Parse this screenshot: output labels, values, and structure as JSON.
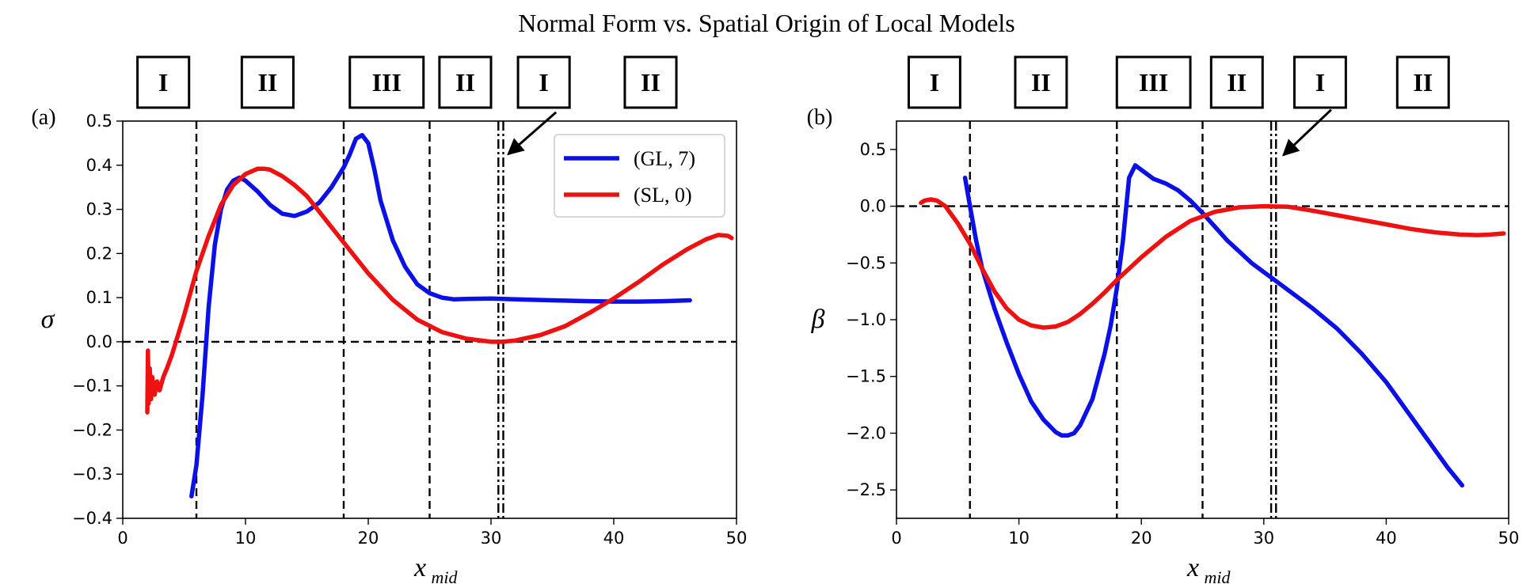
{
  "title": "Normal Form vs. Spatial Origin of Local Models",
  "chart_data": [
    {
      "panel": "(a)",
      "type": "line",
      "xlabel": "x",
      "xlabel_sub": "mid",
      "ylabel": "σ",
      "xlim": [
        0,
        50
      ],
      "ylim": [
        -0.4,
        0.5
      ],
      "xticks": [
        0,
        10,
        20,
        30,
        40,
        50
      ],
      "yticks": [
        -0.4,
        -0.3,
        -0.2,
        -0.1,
        0.0,
        0.1,
        0.2,
        0.3,
        0.4,
        0.5
      ],
      "ytick_labels": [
        "−0.4",
        "−0.3",
        "−0.2",
        "−0.1",
        "0.0",
        "0.1",
        "0.2",
        "0.3",
        "0.4",
        "0.5"
      ],
      "hline": 0,
      "vlines": [
        {
          "x": 6,
          "style": "dashed"
        },
        {
          "x": 18,
          "style": "dashed"
        },
        {
          "x": 25,
          "style": "dashed"
        },
        {
          "x": 30.6,
          "style": "dashdot"
        },
        {
          "x": 31.0,
          "style": "dashdot"
        }
      ],
      "regions": [
        {
          "label": "I",
          "x": 3.3,
          "w": 4.2
        },
        {
          "label": "II",
          "x": 11.8,
          "w": 4.2
        },
        {
          "label": "III",
          "x": 21.5,
          "w": 6.0
        },
        {
          "label": "II",
          "x": 27.9,
          "w": 4.2
        },
        {
          "label": "I",
          "x": 34.3,
          "w": 4.2
        },
        {
          "label": "II",
          "x": 43.0,
          "w": 4.2
        }
      ],
      "arrow": {
        "from": [
          35.3,
          0.52
        ],
        "to": [
          31.4,
          0.425
        ]
      },
      "legend": {
        "position": "top-right",
        "entries": [
          "(GL, 7)",
          "(SL, 0)"
        ]
      },
      "series": [
        {
          "name": "(GL, 7)",
          "color": "#0a10e6",
          "points": [
            [
              5.6,
              -0.35
            ],
            [
              6,
              -0.28
            ],
            [
              6.5,
              -0.12
            ],
            [
              7,
              0.08
            ],
            [
              7.5,
              0.22
            ],
            [
              8,
              0.3
            ],
            [
              8.5,
              0.345
            ],
            [
              9,
              0.365
            ],
            [
              9.5,
              0.372
            ],
            [
              10,
              0.365
            ],
            [
              11,
              0.34
            ],
            [
              12,
              0.31
            ],
            [
              13,
              0.29
            ],
            [
              14,
              0.285
            ],
            [
              15,
              0.295
            ],
            [
              16,
              0.315
            ],
            [
              17,
              0.35
            ],
            [
              18,
              0.395
            ],
            [
              18.5,
              0.425
            ],
            [
              19,
              0.46
            ],
            [
              19.5,
              0.468
            ],
            [
              20,
              0.45
            ],
            [
              20.5,
              0.39
            ],
            [
              21,
              0.32
            ],
            [
              22,
              0.23
            ],
            [
              23,
              0.17
            ],
            [
              24,
              0.13
            ],
            [
              25,
              0.11
            ],
            [
              26,
              0.1
            ],
            [
              27,
              0.096
            ],
            [
              28,
              0.097
            ],
            [
              30,
              0.098
            ],
            [
              32,
              0.096
            ],
            [
              35,
              0.094
            ],
            [
              38,
              0.092
            ],
            [
              40,
              0.091
            ],
            [
              42,
              0.091
            ],
            [
              44,
              0.092
            ],
            [
              46.2,
              0.094
            ]
          ]
        },
        {
          "name": "(SL, 0)",
          "color": "#ee1111",
          "points": [
            [
              2,
              -0.16
            ],
            [
              2.05,
              -0.02
            ],
            [
              2.1,
              -0.14
            ],
            [
              2.2,
              -0.06
            ],
            [
              2.3,
              -0.13
            ],
            [
              2.4,
              -0.08
            ],
            [
              2.6,
              -0.12
            ],
            [
              2.8,
              -0.09
            ],
            [
              3,
              -0.11
            ],
            [
              3.3,
              -0.08
            ],
            [
              3.6,
              -0.06
            ],
            [
              4,
              -0.03
            ],
            [
              5,
              0.06
            ],
            [
              6,
              0.16
            ],
            [
              7,
              0.24
            ],
            [
              8,
              0.31
            ],
            [
              9,
              0.355
            ],
            [
              10,
              0.38
            ],
            [
              11,
              0.392
            ],
            [
              11.5,
              0.392
            ],
            [
              12,
              0.39
            ],
            [
              13,
              0.375
            ],
            [
              14,
              0.355
            ],
            [
              15,
              0.33
            ],
            [
              16,
              0.295
            ],
            [
              17,
              0.26
            ],
            [
              18,
              0.225
            ],
            [
              20,
              0.155
            ],
            [
              22,
              0.095
            ],
            [
              24,
              0.05
            ],
            [
              26,
              0.022
            ],
            [
              28,
              0.007
            ],
            [
              30,
              0.0
            ],
            [
              31,
              0.0
            ],
            [
              32,
              0.003
            ],
            [
              34,
              0.015
            ],
            [
              36,
              0.035
            ],
            [
              38,
              0.065
            ],
            [
              40,
              0.098
            ],
            [
              42,
              0.135
            ],
            [
              44,
              0.175
            ],
            [
              46,
              0.21
            ],
            [
              47.5,
              0.232
            ],
            [
              48.5,
              0.242
            ],
            [
              49.3,
              0.24
            ],
            [
              49.6,
              0.235
            ]
          ]
        }
      ]
    },
    {
      "panel": "(b)",
      "type": "line",
      "xlabel": "x",
      "xlabel_sub": "mid",
      "ylabel": "β",
      "xlim": [
        0,
        50
      ],
      "ylim": [
        -2.75,
        0.75
      ],
      "xticks": [
        0,
        10,
        20,
        30,
        40,
        50
      ],
      "yticks": [
        -2.5,
        -2.0,
        -1.5,
        -1.0,
        -0.5,
        0.0,
        0.5
      ],
      "ytick_labels": [
        "−2.5",
        "−2.0",
        "−1.5",
        "−1.0",
        "−0.5",
        "0.0",
        "0.5"
      ],
      "hline": 0,
      "vlines": [
        {
          "x": 6,
          "style": "dashed"
        },
        {
          "x": 18,
          "style": "dashed"
        },
        {
          "x": 25,
          "style": "dashed"
        },
        {
          "x": 30.6,
          "style": "dashdot"
        },
        {
          "x": 31.0,
          "style": "dashdot"
        }
      ],
      "regions": [
        {
          "label": "I",
          "x": 3.1,
          "w": 4.2
        },
        {
          "label": "II",
          "x": 11.8,
          "w": 4.2
        },
        {
          "label": "III",
          "x": 21.0,
          "w": 6.0
        },
        {
          "label": "II",
          "x": 27.8,
          "w": 4.2
        },
        {
          "label": "I",
          "x": 34.6,
          "w": 4.2
        },
        {
          "label": "II",
          "x": 43.0,
          "w": 4.2
        }
      ],
      "arrow": {
        "from": [
          35.5,
          0.85
        ],
        "to": [
          31.6,
          0.45
        ]
      },
      "legend": null,
      "series": [
        {
          "name": "(GL, 7)",
          "color": "#0a10e6",
          "points": [
            [
              5.6,
              0.25
            ],
            [
              6,
              0.0
            ],
            [
              6.5,
              -0.3
            ],
            [
              7,
              -0.55
            ],
            [
              8,
              -0.9
            ],
            [
              9,
              -1.2
            ],
            [
              10,
              -1.48
            ],
            [
              11,
              -1.72
            ],
            [
              12,
              -1.88
            ],
            [
              13,
              -1.99
            ],
            [
              13.5,
              -2.02
            ],
            [
              14,
              -2.02
            ],
            [
              14.5,
              -2.0
            ],
            [
              15,
              -1.93
            ],
            [
              16,
              -1.7
            ],
            [
              17,
              -1.3
            ],
            [
              17.5,
              -1.05
            ],
            [
              18,
              -0.72
            ],
            [
              18.5,
              -0.3
            ],
            [
              19,
              0.25
            ],
            [
              19.5,
              0.36
            ],
            [
              20,
              0.32
            ],
            [
              21,
              0.24
            ],
            [
              22,
              0.2
            ],
            [
              23,
              0.14
            ],
            [
              24,
              0.05
            ],
            [
              25,
              -0.06
            ],
            [
              26,
              -0.18
            ],
            [
              27,
              -0.3
            ],
            [
              28,
              -0.4
            ],
            [
              29,
              -0.5
            ],
            [
              30,
              -0.58
            ],
            [
              31,
              -0.66
            ],
            [
              32,
              -0.74
            ],
            [
              33,
              -0.82
            ],
            [
              34,
              -0.9
            ],
            [
              36,
              -1.08
            ],
            [
              38,
              -1.3
            ],
            [
              40,
              -1.55
            ],
            [
              42,
              -1.85
            ],
            [
              44,
              -2.15
            ],
            [
              45,
              -2.3
            ],
            [
              46.2,
              -2.46
            ]
          ]
        },
        {
          "name": "(SL, 0)",
          "color": "#ee1111",
          "points": [
            [
              2,
              0.03
            ],
            [
              2.3,
              0.05
            ],
            [
              2.8,
              0.06
            ],
            [
              3.3,
              0.05
            ],
            [
              4,
              0.0
            ],
            [
              5,
              -0.15
            ],
            [
              6,
              -0.33
            ],
            [
              7,
              -0.55
            ],
            [
              8,
              -0.75
            ],
            [
              9,
              -0.9
            ],
            [
              10,
              -1.0
            ],
            [
              11,
              -1.05
            ],
            [
              12,
              -1.07
            ],
            [
              13,
              -1.06
            ],
            [
              14,
              -1.02
            ],
            [
              15,
              -0.95
            ],
            [
              16,
              -0.86
            ],
            [
              17,
              -0.76
            ],
            [
              18,
              -0.65
            ],
            [
              20,
              -0.45
            ],
            [
              22,
              -0.27
            ],
            [
              24,
              -0.13
            ],
            [
              26,
              -0.05
            ],
            [
              28,
              -0.01
            ],
            [
              30,
              0.0
            ],
            [
              32,
              -0.005
            ],
            [
              34,
              -0.04
            ],
            [
              36,
              -0.08
            ],
            [
              38,
              -0.12
            ],
            [
              40,
              -0.16
            ],
            [
              42,
              -0.2
            ],
            [
              44,
              -0.23
            ],
            [
              46,
              -0.25
            ],
            [
              47.5,
              -0.255
            ],
            [
              48.5,
              -0.25
            ],
            [
              49.6,
              -0.24
            ]
          ]
        }
      ]
    }
  ]
}
